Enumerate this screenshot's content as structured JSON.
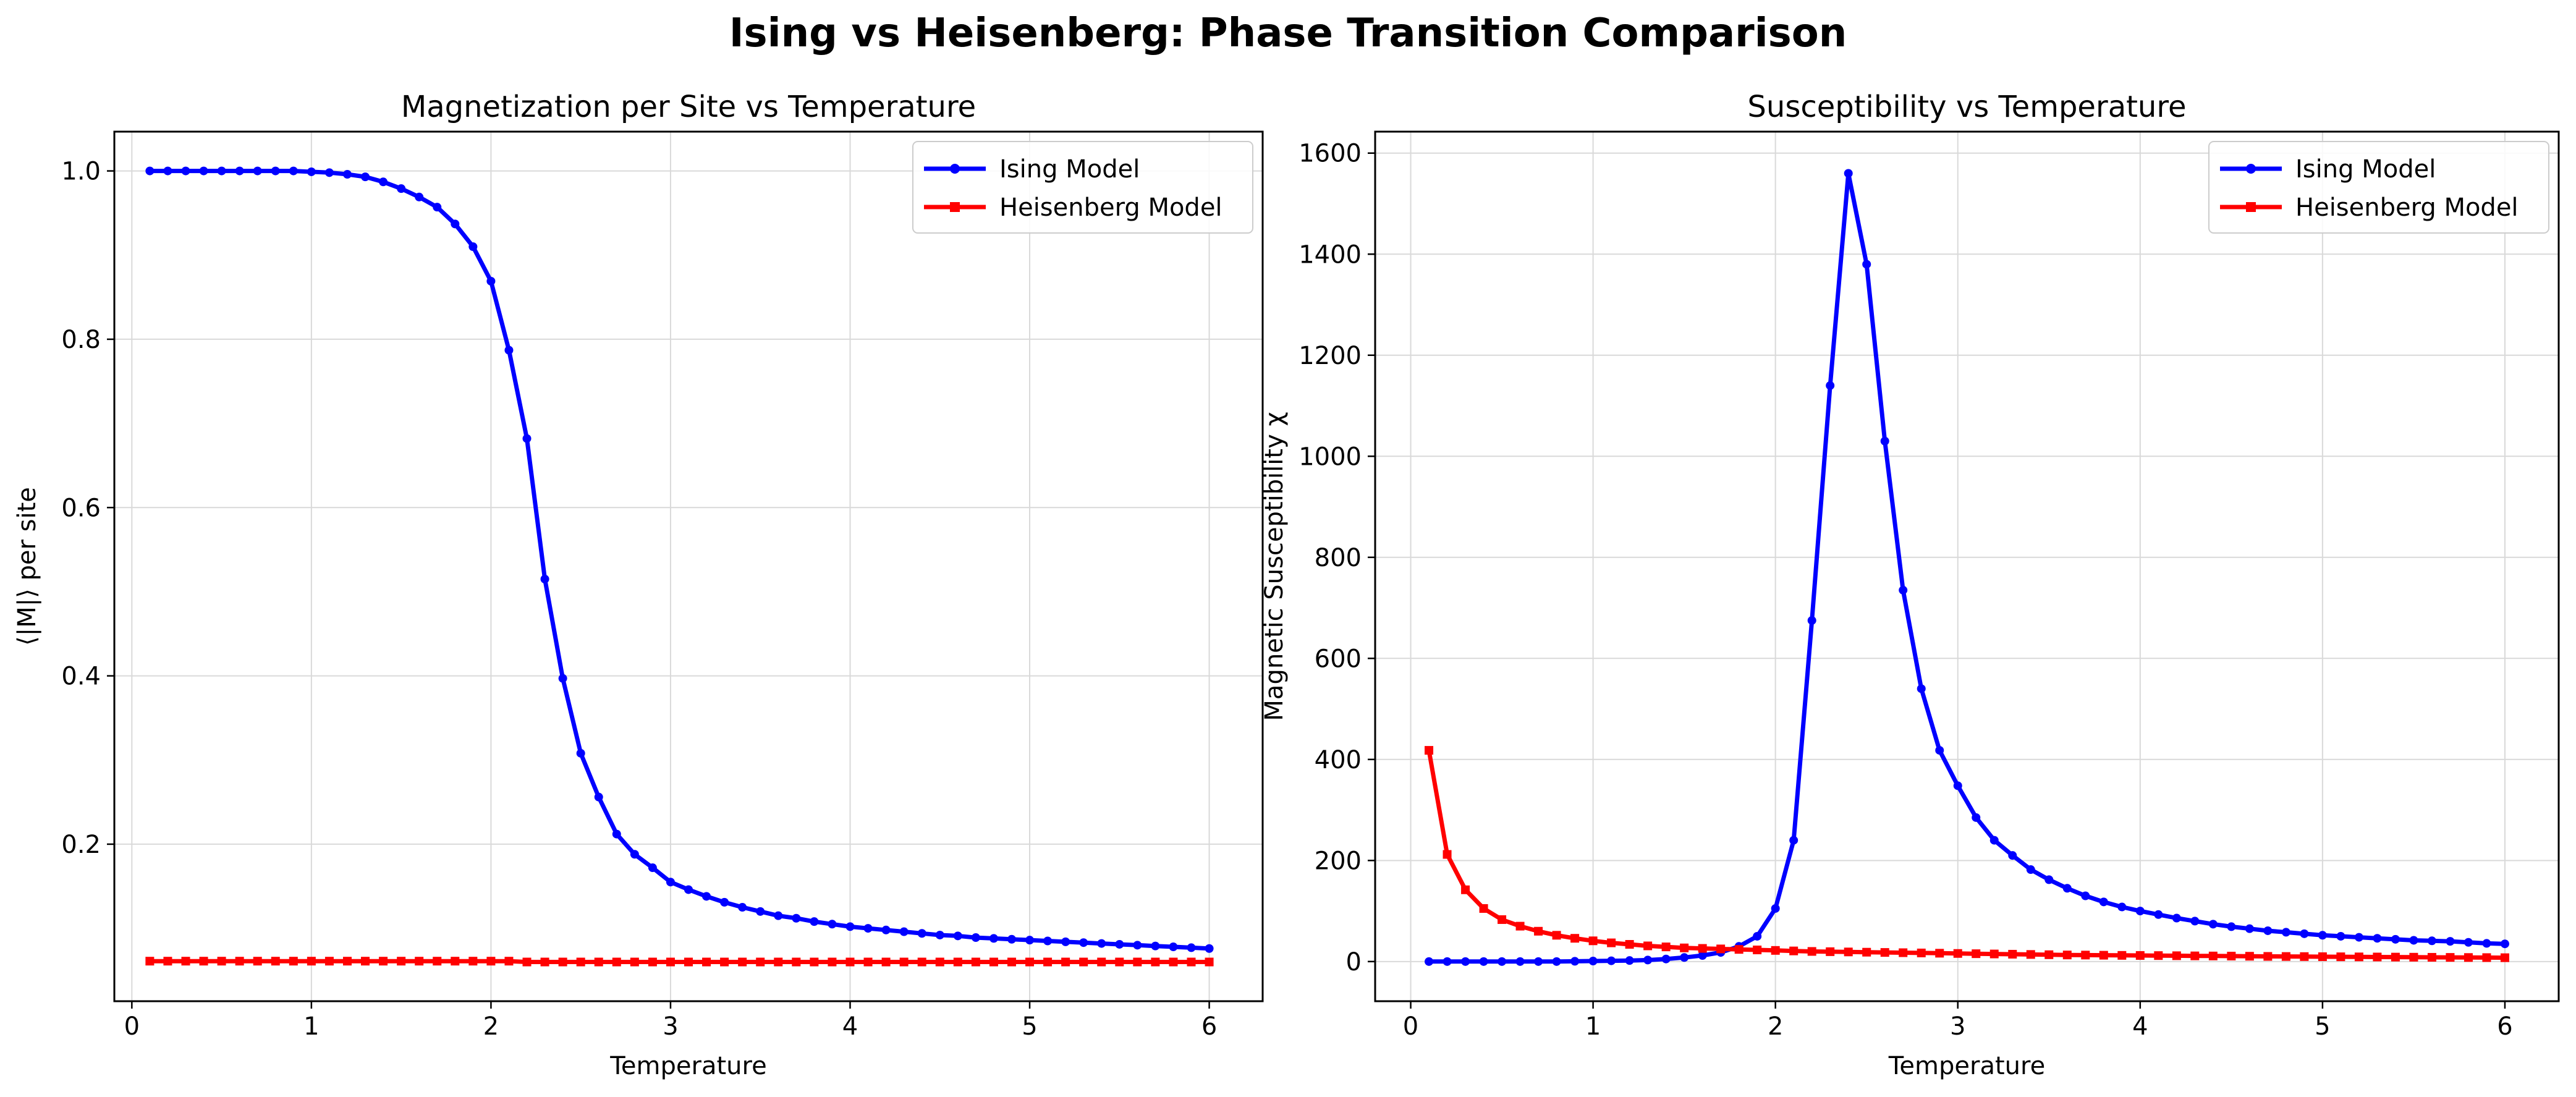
{
  "figure": {
    "suptitle": "Ising vs Heisenberg: Phase Transition Comparison"
  },
  "colors": {
    "ising": "#0000ff",
    "heisenberg": "#ff0000",
    "grid": "#d9d9d9"
  },
  "chart_data": [
    {
      "type": "line",
      "title": "Magnetization per Site vs Temperature",
      "xlabel": "Temperature",
      "ylabel": "⟨|M|⟩ per site",
      "xlim": [
        -0.0975,
        6.2975
      ],
      "ylim": [
        0.0134,
        1.0467
      ],
      "xticks": [
        0,
        1,
        2,
        3,
        4,
        5,
        6
      ],
      "xtick_labels": [
        "0",
        "1",
        "2",
        "3",
        "4",
        "5",
        "6"
      ],
      "yticks": [
        0.2,
        0.4,
        0.6,
        0.8,
        1.0
      ],
      "ytick_labels": [
        "0.2",
        "0.4",
        "0.6",
        "0.8",
        "1.0"
      ],
      "grid": true,
      "legend_position": "top-right",
      "x_start": 0.1,
      "x_step": 0.1,
      "x_count": 60,
      "series": [
        {
          "name": "Ising Model",
          "marker": "circle",
          "values": [
            1.0,
            1.0,
            1.0,
            1.0,
            1.0,
            1.0,
            1.0,
            1.0,
            1.0,
            0.999,
            0.998,
            0.996,
            0.993,
            0.987,
            0.979,
            0.969,
            0.957,
            0.937,
            0.91,
            0.869,
            0.787,
            0.682,
            0.515,
            0.397,
            0.308,
            0.256,
            0.212,
            0.188,
            0.172,
            0.155,
            0.146,
            0.138,
            0.131,
            0.125,
            0.12,
            0.115,
            0.112,
            0.108,
            0.105,
            0.102,
            0.1,
            0.098,
            0.096,
            0.094,
            0.092,
            0.091,
            0.089,
            0.088,
            0.087,
            0.086,
            0.085,
            0.084,
            0.083,
            0.082,
            0.081,
            0.08,
            0.079,
            0.078,
            0.077,
            0.076
          ]
        },
        {
          "name": "Heisenberg Model",
          "marker": "square",
          "values": [
            0.061,
            0.061,
            0.061,
            0.061,
            0.061,
            0.061,
            0.061,
            0.061,
            0.061,
            0.061,
            0.061,
            0.061,
            0.061,
            0.061,
            0.061,
            0.061,
            0.061,
            0.061,
            0.061,
            0.061,
            0.061,
            0.06,
            0.06,
            0.06,
            0.06,
            0.06,
            0.06,
            0.06,
            0.06,
            0.06,
            0.06,
            0.06,
            0.06,
            0.06,
            0.06,
            0.06,
            0.06,
            0.06,
            0.06,
            0.06,
            0.06,
            0.06,
            0.06,
            0.06,
            0.06,
            0.06,
            0.06,
            0.06,
            0.06,
            0.06,
            0.06,
            0.06,
            0.06,
            0.06,
            0.06,
            0.06,
            0.06,
            0.06,
            0.06,
            0.06
          ]
        }
      ]
    },
    {
      "type": "line",
      "title": "Susceptibility vs Temperature",
      "xlabel": "Temperature",
      "ylabel": "Magnetic Susceptibility χ",
      "xlim": [
        -0.195,
        6.295
      ],
      "ylim": [
        -78.5,
        1642.5
      ],
      "xticks": [
        0,
        1,
        2,
        3,
        4,
        5,
        6
      ],
      "xtick_labels": [
        "0",
        "1",
        "2",
        "3",
        "4",
        "5",
        "6"
      ],
      "yticks": [
        0,
        200,
        400,
        600,
        800,
        1000,
        1200,
        1400,
        1600
      ],
      "ytick_labels": [
        "0",
        "200",
        "400",
        "600",
        "800",
        "1000",
        "1200",
        "1400",
        "1600"
      ],
      "grid": true,
      "legend_position": "top-right",
      "x_start": 0.1,
      "x_step": 0.1,
      "x_count": 60,
      "series": [
        {
          "name": "Ising Model",
          "marker": "circle",
          "values": [
            0,
            0,
            0,
            0,
            0,
            0,
            0,
            0,
            0.5,
            1,
            1.5,
            2,
            3,
            5,
            8,
            12,
            18,
            30,
            50,
            105,
            240,
            675,
            1140,
            1560,
            1380,
            1030,
            735,
            540,
            418,
            348,
            285,
            240,
            210,
            182,
            162,
            145,
            130,
            118,
            108,
            100,
            93,
            86,
            80,
            74,
            69,
            65,
            61,
            58,
            55,
            52,
            50,
            48,
            46,
            44,
            42,
            41,
            40,
            38,
            36,
            35
          ]
        },
        {
          "name": "Heisenberg Model",
          "marker": "square",
          "values": [
            418,
            212,
            142,
            105,
            83,
            70,
            60,
            52,
            46,
            41,
            37,
            34,
            31,
            29,
            27,
            26,
            25,
            24,
            23,
            22,
            21,
            20,
            19.5,
            19,
            18.5,
            18,
            17.5,
            17,
            16.5,
            16,
            15.5,
            15,
            14.5,
            14,
            13.5,
            13,
            12.8,
            12.5,
            12.2,
            12,
            11.8,
            11.5,
            11.2,
            11,
            10.8,
            10.5,
            10.2,
            10,
            9.8,
            9.6,
            9.4,
            9.2,
            9,
            8.8,
            8.6,
            8.4,
            8.2,
            8,
            7.8,
            7.6
          ]
        }
      ]
    }
  ]
}
